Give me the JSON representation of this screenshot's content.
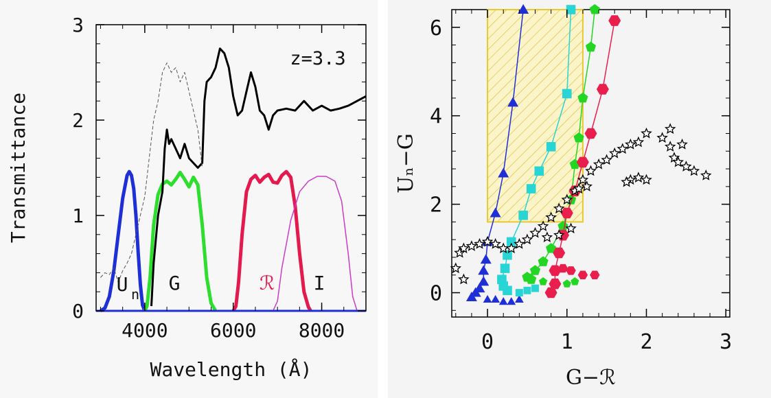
{
  "chart_data": [
    {
      "type": "line",
      "annotation": "z=3.3",
      "xlabel": "Wavelength (Å)",
      "ylabel": "Transmittance",
      "xlim": [
        2900,
        9000
      ],
      "ylim": [
        0,
        3
      ],
      "x_ticks": [
        4000,
        6000,
        8000
      ],
      "y_ticks": [
        0,
        1,
        2,
        3
      ],
      "filters": [
        {
          "label": "U",
          "subscript": "n",
          "color": "#1f2fd6",
          "points": [
            [
              3000,
              0
            ],
            [
              3100,
              0.03
            ],
            [
              3200,
              0.15
            ],
            [
              3300,
              0.42
            ],
            [
              3400,
              0.8
            ],
            [
              3500,
              1.18
            ],
            [
              3600,
              1.42
            ],
            [
              3650,
              1.46
            ],
            [
              3700,
              1.42
            ],
            [
              3750,
              1.28
            ],
            [
              3800,
              1.0
            ],
            [
              3850,
              0.62
            ],
            [
              3900,
              0.28
            ],
            [
              3950,
              0.06
            ],
            [
              4000,
              0
            ]
          ]
        },
        {
          "label": "G",
          "color": "#2ede2e",
          "points": [
            [
              4000,
              0
            ],
            [
              4050,
              0.05
            ],
            [
              4120,
              0.35
            ],
            [
              4200,
              0.9
            ],
            [
              4300,
              1.22
            ],
            [
              4400,
              1.33
            ],
            [
              4500,
              1.36
            ],
            [
              4600,
              1.32
            ],
            [
              4700,
              1.38
            ],
            [
              4800,
              1.45
            ],
            [
              4900,
              1.38
            ],
            [
              5000,
              1.3
            ],
            [
              5100,
              1.4
            ],
            [
              5200,
              1.32
            ],
            [
              5300,
              0.9
            ],
            [
              5400,
              0.35
            ],
            [
              5500,
              0.08
            ],
            [
              5600,
              0
            ]
          ]
        },
        {
          "label": "ℛ",
          "color": "#e31a4d",
          "points": [
            [
              6000,
              0
            ],
            [
              6060,
              0.05
            ],
            [
              6120,
              0.3
            ],
            [
              6200,
              0.8
            ],
            [
              6300,
              1.25
            ],
            [
              6400,
              1.38
            ],
            [
              6500,
              1.42
            ],
            [
              6600,
              1.35
            ],
            [
              6700,
              1.4
            ],
            [
              6800,
              1.43
            ],
            [
              6900,
              1.35
            ],
            [
              7000,
              1.34
            ],
            [
              7100,
              1.42
            ],
            [
              7200,
              1.46
            ],
            [
              7300,
              1.4
            ],
            [
              7400,
              1.1
            ],
            [
              7500,
              0.6
            ],
            [
              7600,
              0.2
            ],
            [
              7700,
              0.04
            ],
            [
              7750,
              0
            ]
          ]
        },
        {
          "label": "I",
          "color": "#c83cc8",
          "points": [
            [
              6900,
              0
            ],
            [
              7000,
              0.1
            ],
            [
              7100,
              0.45
            ],
            [
              7300,
              0.95
            ],
            [
              7500,
              1.25
            ],
            [
              7700,
              1.36
            ],
            [
              7900,
              1.41
            ],
            [
              8100,
              1.41
            ],
            [
              8300,
              1.36
            ],
            [
              8450,
              1.15
            ],
            [
              8600,
              0.6
            ],
            [
              8700,
              0.15
            ],
            [
              8800,
              0
            ]
          ]
        }
      ],
      "series": [
        {
          "style": "solid",
          "color": "#000000",
          "points": [
            [
              4150,
              0.05
            ],
            [
              4200,
              0.5
            ],
            [
              4300,
              1.0
            ],
            [
              4400,
              1.25
            ],
            [
              4450,
              1.7
            ],
            [
              4500,
              1.9
            ],
            [
              4550,
              1.75
            ],
            [
              4600,
              1.8
            ],
            [
              4700,
              1.7
            ],
            [
              4800,
              1.6
            ],
            [
              4900,
              1.75
            ],
            [
              5000,
              1.6
            ],
            [
              5100,
              1.55
            ],
            [
              5200,
              1.5
            ],
            [
              5300,
              1.55
            ],
            [
              5350,
              2.2
            ],
            [
              5400,
              2.4
            ],
            [
              5500,
              2.45
            ],
            [
              5600,
              2.55
            ],
            [
              5700,
              2.75
            ],
            [
              5800,
              2.7
            ],
            [
              5900,
              2.55
            ],
            [
              6000,
              2.25
            ],
            [
              6100,
              2.05
            ],
            [
              6200,
              2.1
            ],
            [
              6300,
              2.3
            ],
            [
              6400,
              2.5
            ],
            [
              6500,
              2.35
            ],
            [
              6600,
              2.1
            ],
            [
              6700,
              2.05
            ],
            [
              6800,
              1.9
            ],
            [
              6900,
              2.05
            ],
            [
              7000,
              2.1
            ],
            [
              7200,
              2.12
            ],
            [
              7400,
              2.1
            ],
            [
              7600,
              2.2
            ],
            [
              7800,
              2.1
            ],
            [
              8000,
              2.15
            ],
            [
              8200,
              2.1
            ],
            [
              8400,
              2.12
            ],
            [
              8600,
              2.15
            ],
            [
              8800,
              2.2
            ],
            [
              9000,
              2.25
            ]
          ]
        },
        {
          "style": "dashed",
          "color": "#555555",
          "points": [
            [
              3000,
              0.35
            ],
            [
              3100,
              0.4
            ],
            [
              3200,
              0.38
            ],
            [
              3300,
              0.45
            ],
            [
              3400,
              0.3
            ],
            [
              3500,
              0.42
            ],
            [
              3600,
              0.5
            ],
            [
              3700,
              0.6
            ],
            [
              3800,
              0.8
            ],
            [
              3900,
              1.0
            ],
            [
              4000,
              1.2
            ],
            [
              4100,
              1.6
            ],
            [
              4200,
              2.0
            ],
            [
              4300,
              2.2
            ],
            [
              4400,
              2.5
            ],
            [
              4500,
              2.6
            ],
            [
              4600,
              2.5
            ],
            [
              4700,
              2.55
            ],
            [
              4800,
              2.4
            ],
            [
              4900,
              2.5
            ],
            [
              5000,
              2.3
            ],
            [
              5100,
              2.1
            ],
            [
              5200,
              1.9
            ],
            [
              5300,
              1.5
            ]
          ]
        }
      ]
    },
    {
      "type": "scatter",
      "xlabel": "G−ℛ",
      "ylabel": "Uₙ−G",
      "xlim": [
        -0.45,
        3.05
      ],
      "ylim": [
        -0.55,
        6.4
      ],
      "x_ticks": [
        0,
        1,
        2,
        3
      ],
      "y_ticks": [
        0,
        2,
        4,
        6
      ],
      "selection_box": {
        "x": [
          0.0,
          1.2
        ],
        "y": [
          1.6,
          6.4
        ],
        "color": "#e8c92f"
      },
      "series": [
        {
          "marker": "triangle",
          "color": "#1f2fd6",
          "points": [
            [
              -0.2,
              -0.1
            ],
            [
              -0.15,
              0.0
            ],
            [
              -0.1,
              0.1
            ],
            [
              -0.05,
              0.25
            ],
            [
              -0.05,
              0.5
            ],
            [
              -0.02,
              0.75
            ],
            [
              0.0,
              1.15
            ],
            [
              0.1,
              1.8
            ],
            [
              0.2,
              2.7
            ],
            [
              0.32,
              4.3
            ],
            [
              0.45,
              6.4
            ]
          ],
          "extra": [
            [
              0.0,
              -0.15
            ],
            [
              0.1,
              -0.15
            ],
            [
              0.2,
              -0.2
            ],
            [
              0.3,
              -0.2
            ],
            [
              0.4,
              -0.15
            ]
          ]
        },
        {
          "marker": "square",
          "color": "#28d4d4",
          "points": [
            [
              0.25,
              0.05
            ],
            [
              0.2,
              0.15
            ],
            [
              0.18,
              0.3
            ],
            [
              0.22,
              0.55
            ],
            [
              0.25,
              0.85
            ],
            [
              0.3,
              1.15
            ],
            [
              0.45,
              1.75
            ],
            [
              0.55,
              2.35
            ],
            [
              0.65,
              2.75
            ],
            [
              0.8,
              3.3
            ],
            [
              1.0,
              4.5
            ],
            [
              1.05,
              6.4
            ]
          ],
          "extra": [
            [
              0.4,
              0.0
            ],
            [
              0.5,
              0.05
            ],
            [
              0.6,
              0.1
            ]
          ]
        },
        {
          "marker": "pentagon",
          "color": "#23d623",
          "points": [
            [
              0.55,
              0.3
            ],
            [
              0.5,
              0.35
            ],
            [
              0.6,
              0.5
            ],
            [
              0.7,
              0.7
            ],
            [
              0.8,
              1.0
            ],
            [
              0.95,
              1.5
            ],
            [
              1.05,
              2.1
            ],
            [
              1.1,
              2.9
            ],
            [
              1.15,
              3.5
            ],
            [
              1.2,
              4.4
            ],
            [
              1.3,
              5.55
            ],
            [
              1.35,
              6.4
            ]
          ],
          "extra": [
            [
              0.7,
              0.25
            ],
            [
              0.85,
              0.2
            ],
            [
              1.0,
              0.2
            ],
            [
              1.1,
              0.25
            ]
          ]
        },
        {
          "marker": "hexagon",
          "color": "#e81f4d",
          "points": [
            [
              0.8,
              0.0
            ],
            [
              0.85,
              0.2
            ],
            [
              0.85,
              0.5
            ],
            [
              0.9,
              0.9
            ],
            [
              0.95,
              1.3
            ],
            [
              1.0,
              1.8
            ],
            [
              1.1,
              2.3
            ],
            [
              1.2,
              2.95
            ],
            [
              1.3,
              3.6
            ],
            [
              1.45,
              4.6
            ],
            [
              1.6,
              6.15
            ]
          ],
          "extra": [
            [
              0.95,
              0.55
            ],
            [
              1.05,
              0.5
            ],
            [
              1.2,
              0.4
            ],
            [
              1.35,
              0.4
            ]
          ]
        },
        {
          "marker": "star",
          "color": "#000000",
          "points": [
            [
              -0.4,
              0.55
            ],
            [
              -0.35,
              0.9
            ],
            [
              -0.3,
              1.0
            ],
            [
              -0.2,
              1.05
            ],
            [
              -0.1,
              1.1
            ],
            [
              0.0,
              1.15
            ],
            [
              0.1,
              1.1
            ],
            [
              0.2,
              1.0
            ],
            [
              0.3,
              1.0
            ],
            [
              0.4,
              1.1
            ],
            [
              0.5,
              1.2
            ],
            [
              0.6,
              1.35
            ],
            [
              0.7,
              1.5
            ],
            [
              0.8,
              1.7
            ],
            [
              0.9,
              1.9
            ],
            [
              1.0,
              2.1
            ],
            [
              1.1,
              2.3
            ],
            [
              1.2,
              2.55
            ],
            [
              1.3,
              2.75
            ],
            [
              1.4,
              2.9
            ],
            [
              1.5,
              3.0
            ],
            [
              1.6,
              3.15
            ],
            [
              1.7,
              3.25
            ],
            [
              1.8,
              3.35
            ],
            [
              1.9,
              3.4
            ],
            [
              2.0,
              3.6
            ],
            [
              2.2,
              3.5
            ],
            [
              2.3,
              3.3
            ],
            [
              2.35,
              3.05
            ],
            [
              2.4,
              2.95
            ],
            [
              2.5,
              2.85
            ],
            [
              2.6,
              2.75
            ],
            [
              2.75,
              2.65
            ],
            [
              1.9,
              2.6
            ],
            [
              2.0,
              2.55
            ],
            [
              1.8,
              2.55
            ],
            [
              1.75,
              2.5
            ],
            [
              1.25,
              2.4
            ],
            [
              1.15,
              2.35
            ],
            [
              -0.3,
              0.3
            ],
            [
              0.75,
              1.25
            ],
            [
              0.9,
              1.3
            ],
            [
              1.05,
              1.45
            ],
            [
              2.3,
              3.7
            ],
            [
              2.45,
              3.35
            ]
          ]
        }
      ]
    }
  ],
  "labels": {
    "un_main": "U",
    "un_sub": "n",
    "g": "G",
    "r": "ℛ",
    "i": "I"
  }
}
